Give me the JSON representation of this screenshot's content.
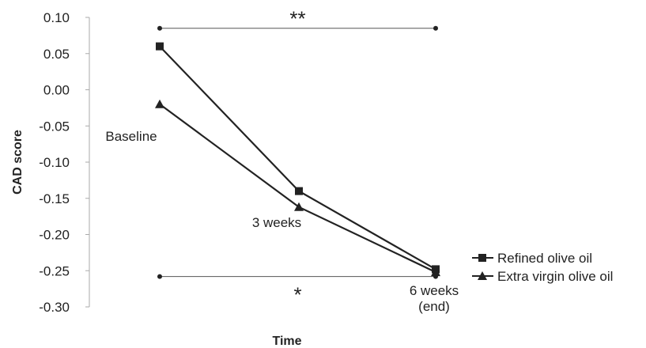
{
  "chart_data": {
    "type": "line",
    "xlabel": "Time",
    "ylabel": "CAD score",
    "ylim": [
      -0.3,
      0.1
    ],
    "yticks": [
      "0.10",
      "0.05",
      "0.00",
      "-0.05",
      "-0.10",
      "-0.15",
      "-0.20",
      "-0.25",
      "-0.30"
    ],
    "categories": [
      "Baseline",
      "3 weeks",
      "6 weeks (end)"
    ],
    "category_labels": [
      [
        "Baseline"
      ],
      [
        "3 weeks"
      ],
      [
        "6 weeks",
        "(end)"
      ]
    ],
    "series": [
      {
        "name": "Refined olive oil",
        "marker": "square",
        "values": [
          0.06,
          -0.14,
          -0.248
        ]
      },
      {
        "name": "Extra virgin olive oil",
        "marker": "triangle",
        "values": [
          -0.02,
          -0.162,
          -0.252
        ]
      }
    ],
    "annotations": [
      {
        "text": "**",
        "from": "Baseline",
        "to": "6 weeks (end)",
        "y": 0.085,
        "text_position": "above"
      },
      {
        "text": "*",
        "from": "Baseline",
        "to": "6 weeks (end)",
        "y": -0.258,
        "text_position": "below"
      }
    ],
    "legend": "right",
    "grid": false,
    "colors": {
      "line": "#222222",
      "axis": "#aaaaaa",
      "bracket": "#555555"
    }
  }
}
